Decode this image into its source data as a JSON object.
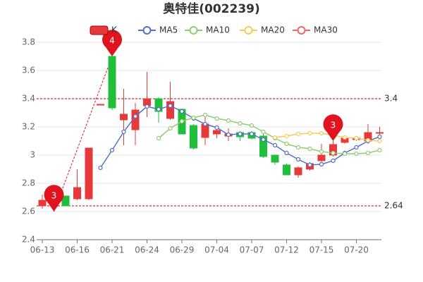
{
  "chart_data": {
    "type": "candlestick",
    "title": "奥特佳(002239)",
    "categories": [
      "06-13",
      null,
      null,
      "06-16",
      null,
      null,
      "06-21",
      null,
      null,
      "06-24",
      null,
      null,
      "06-29",
      null,
      null,
      "07-04",
      null,
      null,
      "07-07",
      null,
      null,
      "07-12",
      null,
      null,
      "07-15",
      null,
      null,
      "07-20",
      null,
      null
    ],
    "candles": {
      "name": "K",
      "up_color": "#e8393a",
      "down_color": "#1fbf39",
      "open": [
        2.64,
        2.65,
        2.71,
        2.69,
        2.69,
        3.36,
        3.7,
        3.25,
        3.18,
        3.35,
        3.4,
        3.26,
        3.325,
        3.21,
        3.125,
        3.15,
        3.135,
        3.16,
        3.16,
        3.135,
        3.0,
        2.93,
        2.86,
        2.9,
        2.96,
        3.0,
        3.09,
        3.11,
        3.1,
        3.16
      ],
      "close": [
        2.68,
        2.66,
        2.64,
        2.77,
        3.05,
        3.36,
        3.335,
        3.29,
        3.32,
        3.4,
        3.31,
        3.38,
        3.15,
        3.05,
        3.22,
        3.175,
        3.15,
        3.13,
        3.12,
        2.99,
        2.95,
        2.86,
        2.91,
        2.94,
        3.0,
        3.075,
        3.12,
        3.12,
        3.16,
        3.16
      ],
      "low": [
        2.62,
        2.6,
        2.64,
        2.68,
        2.68,
        3.36,
        3.32,
        3.07,
        3.07,
        3.27,
        3.23,
        3.25,
        3.15,
        3.04,
        3.07,
        3.12,
        3.1,
        3.1,
        3.11,
        2.98,
        2.93,
        2.86,
        2.84,
        2.89,
        2.95,
        2.99,
        3.08,
        3.1,
        3.08,
        3.14
      ],
      "high": [
        2.72,
        2.67,
        2.71,
        2.9,
        3.05,
        3.36,
        3.7,
        3.47,
        3.37,
        3.59,
        3.41,
        3.52,
        3.33,
        3.22,
        3.27,
        3.2,
        3.19,
        3.17,
        3.17,
        3.15,
        3.0,
        2.94,
        2.92,
        2.95,
        3.08,
        3.1,
        3.14,
        3.13,
        3.22,
        3.2
      ]
    },
    "series": [
      {
        "name": "MA5",
        "color": "#5470c6",
        "values": [
          null,
          null,
          null,
          null,
          null,
          2.91,
          3.035,
          3.165,
          3.275,
          3.345,
          3.325,
          3.35,
          3.31,
          3.26,
          3.22,
          3.195,
          3.145,
          3.15,
          3.15,
          3.11,
          3.07,
          3.015,
          2.97,
          2.93,
          2.935,
          2.96,
          3.015,
          3.055,
          3.1,
          3.13
        ]
      },
      {
        "name": "MA10",
        "color": "#91cc75",
        "values": [
          null,
          null,
          null,
          null,
          null,
          null,
          null,
          null,
          null,
          null,
          3.12,
          3.19,
          3.24,
          3.265,
          3.285,
          3.26,
          3.245,
          3.225,
          3.21,
          3.165,
          3.12,
          3.08,
          3.055,
          3.045,
          3.025,
          3.015,
          3.01,
          3.01,
          3.015,
          3.035
        ]
      },
      {
        "name": "MA20",
        "color": "#fac858",
        "values": [
          null,
          null,
          null,
          null,
          null,
          null,
          null,
          null,
          null,
          null,
          null,
          null,
          null,
          null,
          null,
          null,
          null,
          null,
          null,
          null,
          3.125,
          3.135,
          3.15,
          3.155,
          3.155,
          3.14,
          3.125,
          3.12,
          3.105,
          3.1
        ]
      },
      {
        "name": "MA30",
        "color": "#ee6666",
        "values": [
          null,
          null,
          null,
          null,
          null,
          null,
          null,
          null,
          null,
          null,
          null,
          null,
          null,
          null,
          null,
          null,
          null,
          null,
          null,
          null,
          null,
          null,
          null,
          null,
          null,
          null,
          null,
          null,
          null,
          null
        ]
      }
    ],
    "ylim": [
      2.4,
      3.8
    ],
    "yticks": [
      2.4,
      2.6,
      2.8,
      3,
      3.2,
      3.4,
      3.6,
      3.8
    ],
    "grid": true,
    "ref_lines": [
      3.4,
      2.64
    ],
    "ref_color": "#cc0000",
    "annotations": [
      {
        "index": 6,
        "value": 3.7,
        "label": "4"
      },
      {
        "index": 1,
        "value": 2.6,
        "label": "3"
      },
      {
        "index": 25,
        "value": 3.1,
        "label": "3"
      }
    ],
    "annotation_color": "#e0141e"
  }
}
